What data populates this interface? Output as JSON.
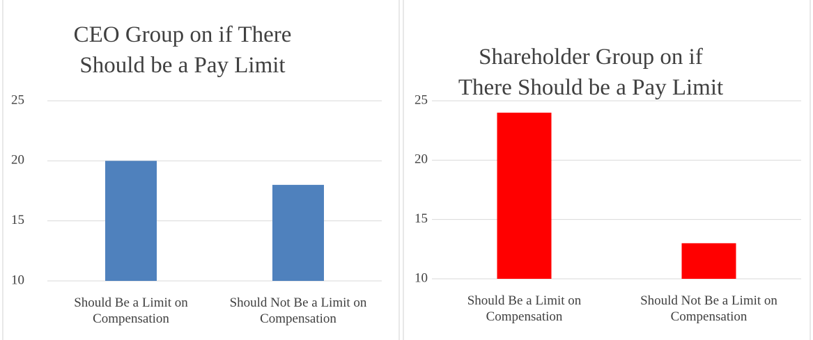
{
  "chart_data": [
    {
      "type": "bar",
      "title": "CEO Group on if There Should be a Pay Limit",
      "categories": [
        "Should Be a Limit on Compensation",
        "Should Not Be a Limit on Compensation"
      ],
      "values": [
        20,
        18
      ],
      "color": "#4f81bd",
      "ylim": [
        10,
        25
      ],
      "yticks": [
        10,
        15,
        20,
        25
      ],
      "grid": true
    },
    {
      "type": "bar",
      "title": "Shareholder Group on if There Should be a Pay Limit",
      "categories": [
        "Should Be a Limit on Compensation",
        "Should Not Be a Limit on Compensation"
      ],
      "values": [
        24,
        13
      ],
      "color": "#ff0000",
      "ylim": [
        10,
        25
      ],
      "yticks": [
        10,
        15,
        20,
        25
      ],
      "grid": true
    }
  ]
}
